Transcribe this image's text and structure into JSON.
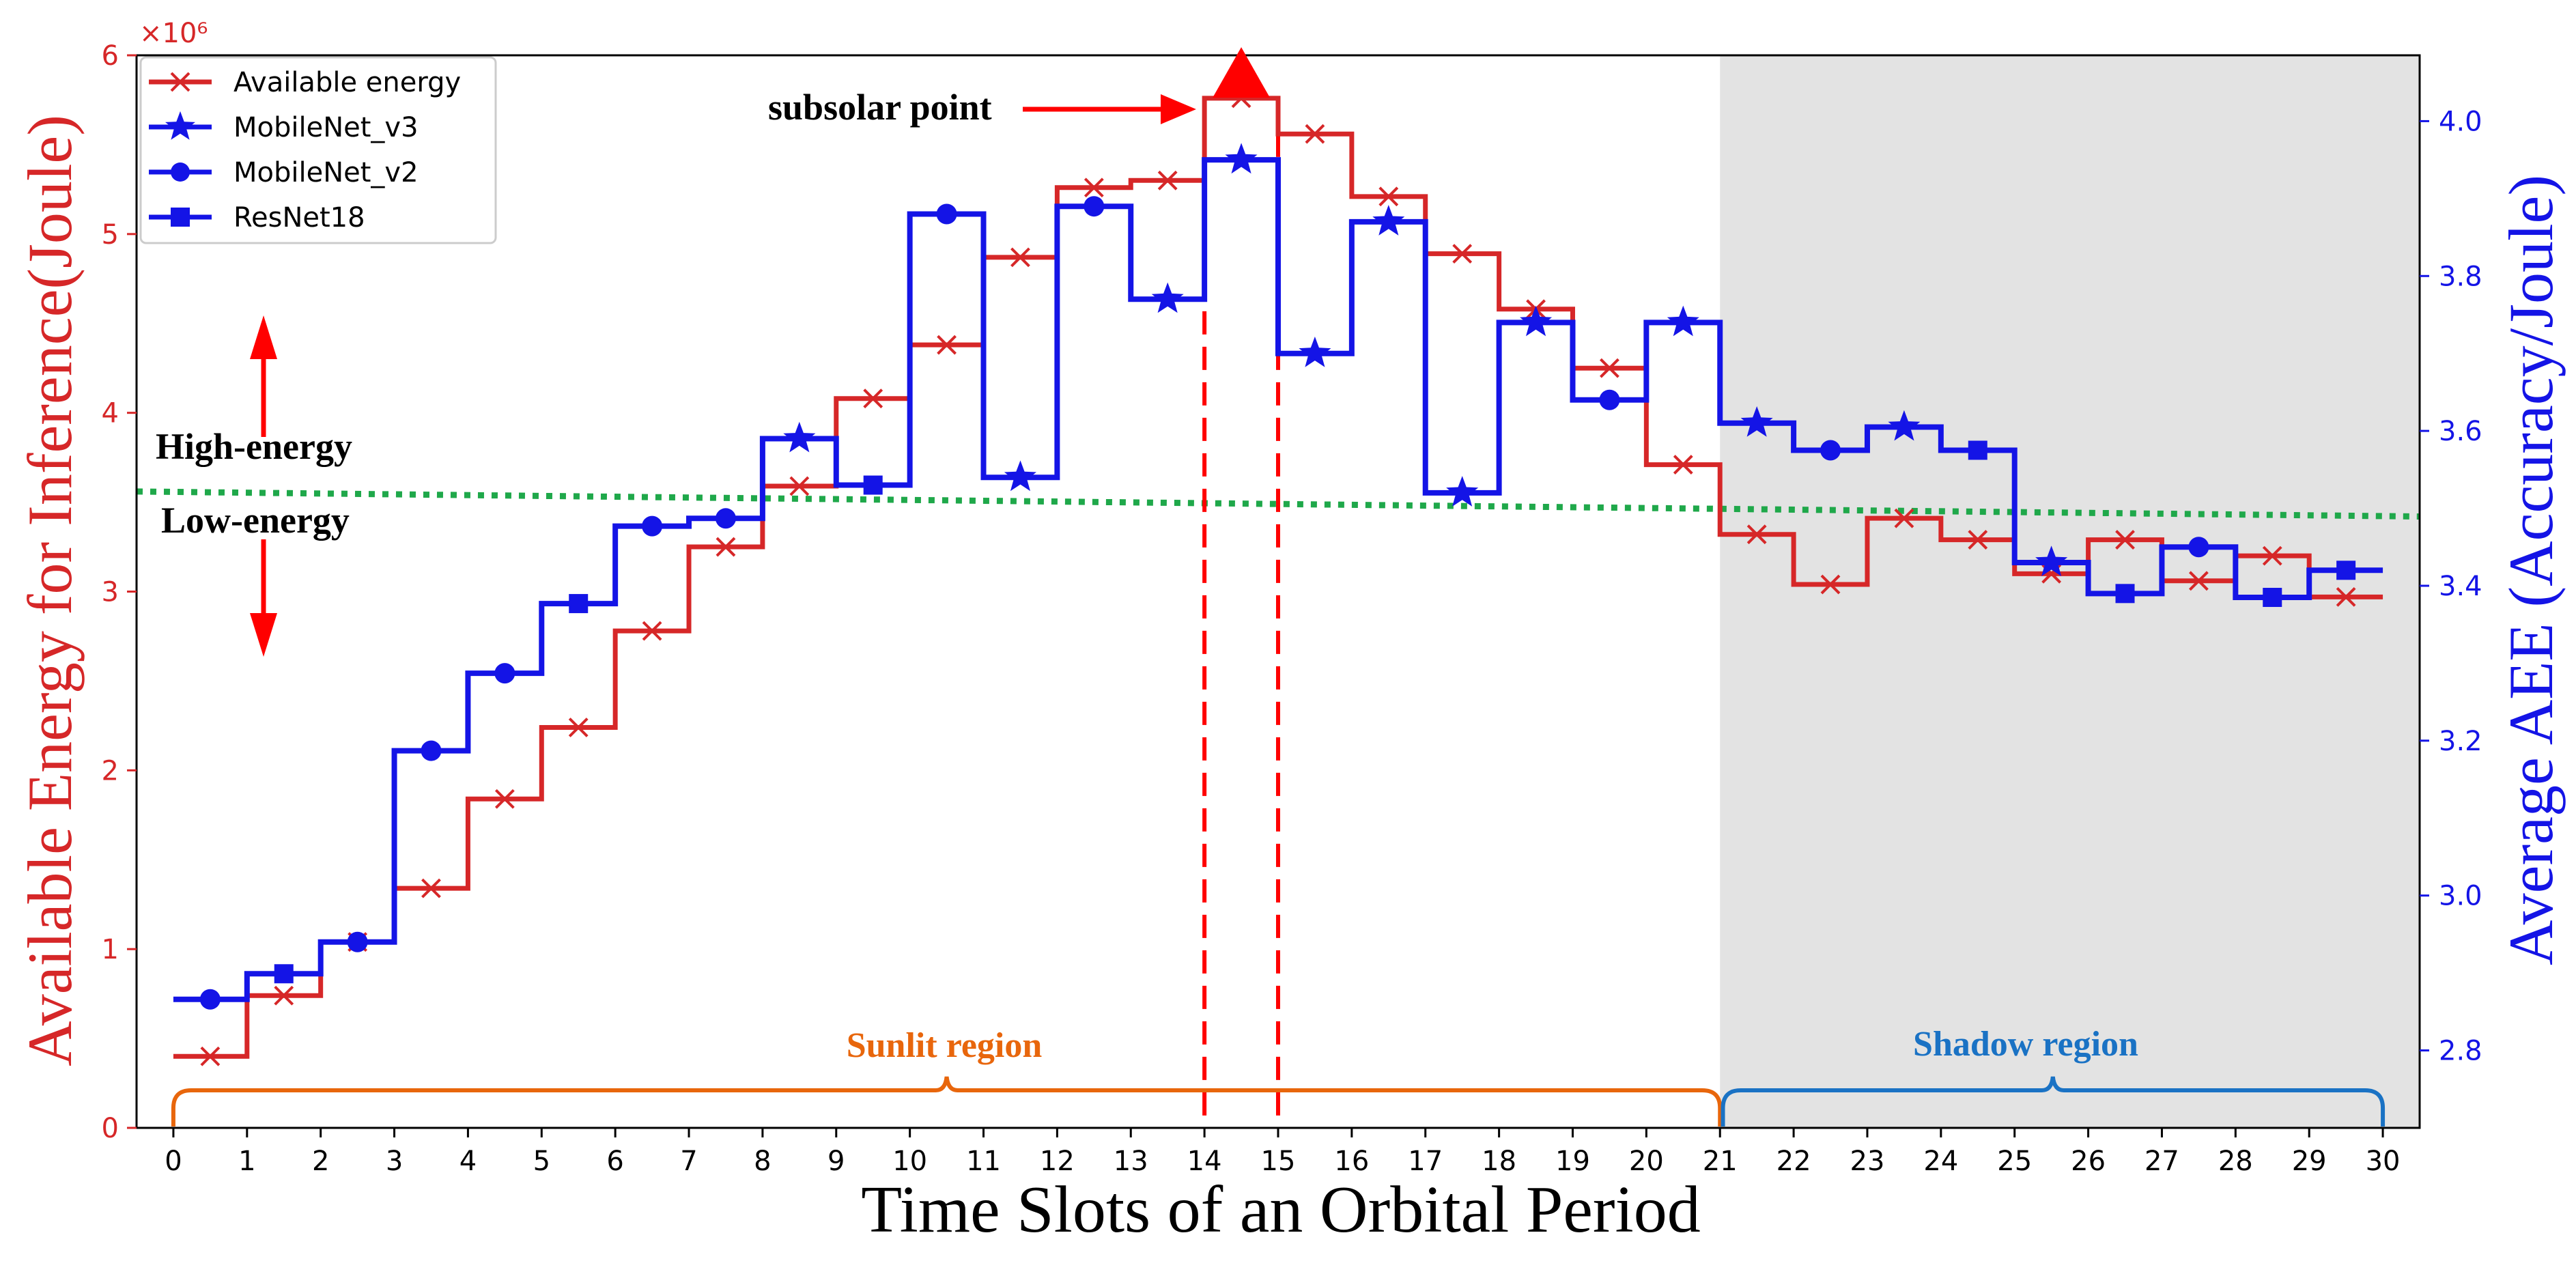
{
  "colors": {
    "energy": "#d62728",
    "aee": "#1414e6",
    "threshold": "#1fa84a",
    "sunlit": "#e8660c",
    "shadow": "#1a72c4",
    "shadow_bg": "#e3e3e3",
    "arrow": "#ff0000"
  },
  "chart_data": {
    "type": "line",
    "step": "post",
    "xlabel": "Time Slots of an Orbital Period",
    "ylabel_left": "Available Energy for Inference(Joule)",
    "ylabel_right": "Average AEE (Accuracy/Joule)",
    "left_axis_multiplier": "×10⁶",
    "x_ticks": [
      0,
      1,
      2,
      3,
      4,
      5,
      6,
      7,
      8,
      9,
      10,
      11,
      12,
      13,
      14,
      15,
      16,
      17,
      18,
      19,
      20,
      21,
      22,
      23,
      24,
      25,
      26,
      27,
      28,
      29,
      30
    ],
    "xlim": [
      -0.5,
      30.5
    ],
    "ylim_left": [
      0,
      6
    ],
    "ylim_right": [
      2.7,
      4.085
    ],
    "y_ticks_left": [
      0,
      1,
      2,
      3,
      4,
      5,
      6
    ],
    "y_ticks_right": [
      "2.8",
      "3.0",
      "3.2",
      "3.4",
      "3.6",
      "3.8",
      "4.0"
    ],
    "y_ticks_right_values": [
      2.8,
      3.0,
      3.2,
      3.4,
      3.6,
      3.8,
      4.0
    ],
    "energy_series": {
      "name": "Available energy",
      "marker": "x",
      "values": [
        0.4,
        0.74,
        1.04,
        1.34,
        1.84,
        2.24,
        2.78,
        3.25,
        3.59,
        4.08,
        4.38,
        4.87,
        5.26,
        5.3,
        5.76,
        5.56,
        5.21,
        4.89,
        4.58,
        4.25,
        3.71,
        3.32,
        3.04,
        3.41,
        3.29,
        3.1,
        3.29,
        3.06,
        3.2,
        2.97
      ]
    },
    "aee_series": {
      "values": [
        2.866,
        2.899,
        2.94,
        3.187,
        3.287,
        3.377,
        3.477,
        3.487,
        3.59,
        3.53,
        3.88,
        3.54,
        3.89,
        3.77,
        3.95,
        3.7,
        3.87,
        3.52,
        3.74,
        3.64,
        3.74,
        3.61,
        3.575,
        3.605,
        3.575,
        3.43,
        3.39,
        3.45,
        3.385,
        3.42
      ],
      "markers": [
        "circle",
        "square",
        "circle",
        "circle",
        "circle",
        "square",
        "circle",
        "circle",
        "star",
        "square",
        "circle",
        "star",
        "circle",
        "star",
        "star",
        "star",
        "star",
        "star",
        "star",
        "circle",
        "star",
        "star",
        "circle",
        "star",
        "square",
        "star",
        "square",
        "circle",
        "square",
        "square"
      ]
    },
    "legend": [
      {
        "label": "Available energy",
        "marker": "x",
        "color_key": "energy"
      },
      {
        "label": "MobileNet_v3",
        "marker": "star",
        "color_key": "aee"
      },
      {
        "label": "MobileNet_v2",
        "marker": "circle",
        "color_key": "aee"
      },
      {
        "label": "ResNet18",
        "marker": "square",
        "color_key": "aee"
      }
    ],
    "threshold_line": {
      "style": "dotted",
      "from": [
        -0.5,
        3.56
      ],
      "to": [
        30.5,
        3.42
      ],
      "axis": "left"
    },
    "subsolar_dashes_x": [
      14,
      15
    ],
    "subsolar_marker": {
      "x": 14.5,
      "y": 5.9
    },
    "shadow_region_x": [
      21,
      30.5
    ],
    "annotations": {
      "subsolar": "subsolar point",
      "high_energy": "High-energy",
      "low_energy": "Low-energy",
      "sunlit": "Sunlit region",
      "shadow": "Shadow region"
    },
    "sunlit_brace": [
      0,
      21
    ],
    "shadow_brace": [
      21,
      30
    ]
  }
}
